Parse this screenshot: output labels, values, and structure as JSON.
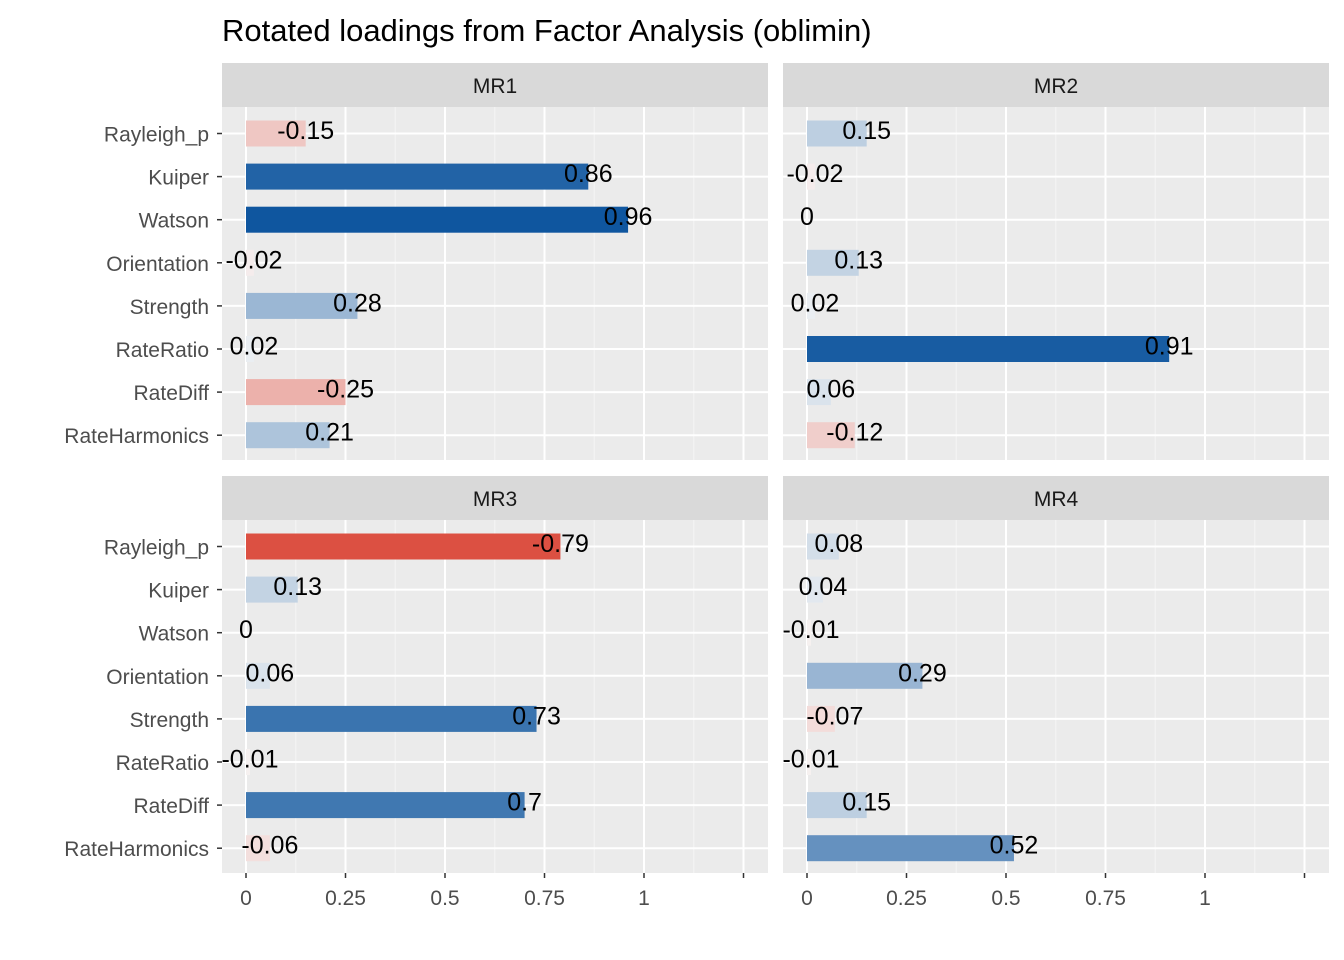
{
  "chart_data": {
    "type": "bar",
    "orientation": "horizontal",
    "title": "Rotated loadings from Factor Analysis (oblimin)",
    "xlabel": "",
    "ylabel": "",
    "xlim": [
      0,
      1.25
    ],
    "x_ticks": [
      0,
      0.25,
      0.5,
      0.75,
      1,
      1.25
    ],
    "x_tick_labels": [
      "0",
      "0.25",
      "0.5",
      "0.75",
      "1",
      ""
    ],
    "categories": [
      "Rayleigh_p",
      "Kuiper",
      "Watson",
      "Orientation",
      "Strength",
      "RateRatio",
      "RateDiff",
      "RateHarmonics"
    ],
    "bar_length": "absolute value of loading",
    "fill_scale": "diverging: negative = red, positive = blue, intensity by magnitude",
    "colors": {
      "negative": "#D7301F",
      "positive": "#08519C",
      "neutral": "#F7F7F7"
    },
    "grid": true,
    "legend": "none",
    "facets": [
      {
        "name": "MR1",
        "values": [
          -0.15,
          0.86,
          0.96,
          -0.02,
          0.28,
          0.02,
          -0.25,
          0.21
        ],
        "labels": [
          "-0.15",
          "0.86",
          "0.96",
          "-0.02",
          "0.28",
          "0.02",
          "-0.25",
          "0.21"
        ]
      },
      {
        "name": "MR2",
        "values": [
          0.15,
          -0.02,
          0,
          0.13,
          0.02,
          0.91,
          0.06,
          -0.12
        ],
        "labels": [
          "0.15",
          "-0.02",
          "0",
          "0.13",
          "0.02",
          "0.91",
          "0.06",
          "-0.12"
        ]
      },
      {
        "name": "MR3",
        "values": [
          -0.79,
          0.13,
          0,
          0.06,
          0.73,
          -0.01,
          0.7,
          -0.06
        ],
        "labels": [
          "-0.79",
          "0.13",
          "0",
          "0.06",
          "0.73",
          "-0.01",
          "0.7",
          "-0.06"
        ]
      },
      {
        "name": "MR4",
        "values": [
          0.08,
          0.04,
          -0.01,
          0.29,
          -0.07,
          -0.01,
          0.15,
          0.52
        ],
        "labels": [
          "0.08",
          "0.04",
          "-0.01",
          "0.29",
          "-0.07",
          "-0.01",
          "0.15",
          "0.52"
        ]
      }
    ]
  }
}
